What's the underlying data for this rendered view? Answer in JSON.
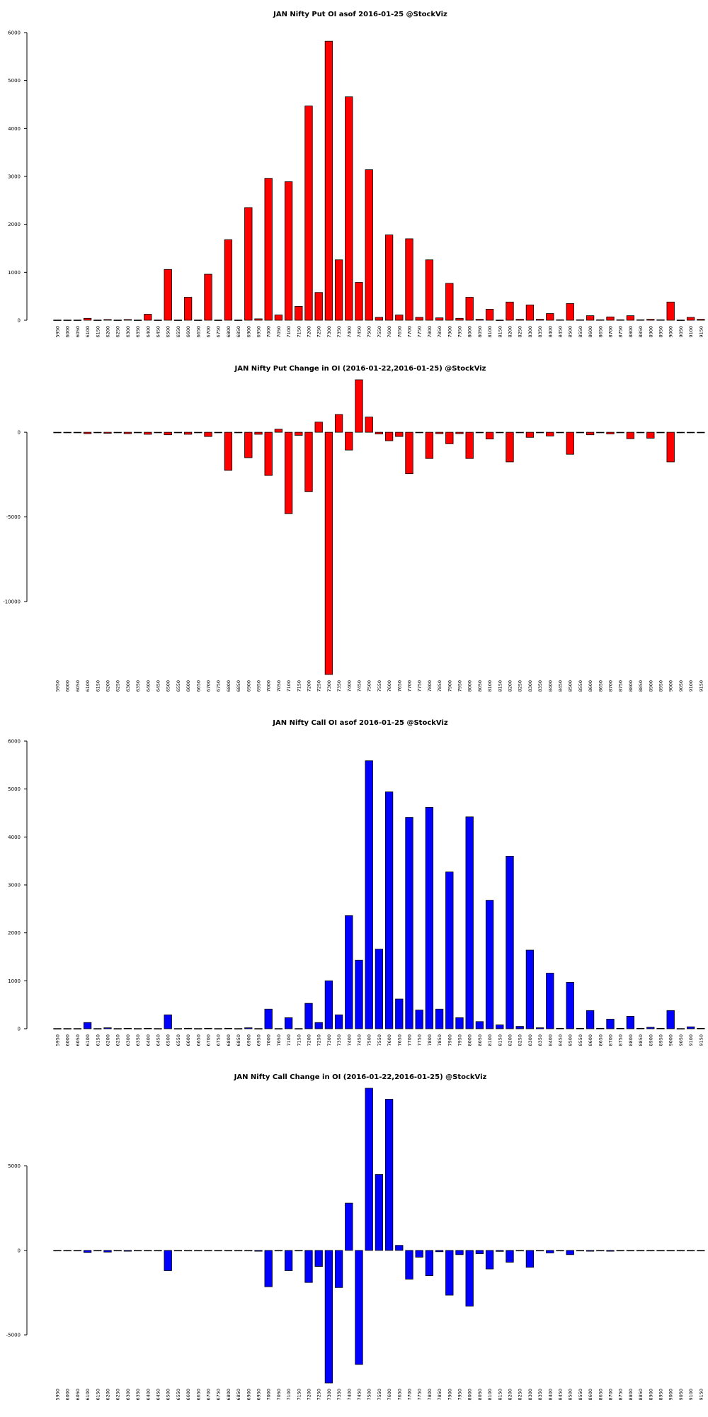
{
  "chart_data": [
    {
      "type": "bar",
      "title": "JAN Nifty Put OI asof 2016-01-25 @StockViz",
      "color": "#ff0000",
      "categories": [
        "5950",
        "6000",
        "6050",
        "6100",
        "6150",
        "6200",
        "6250",
        "6300",
        "6350",
        "6400",
        "6450",
        "6500",
        "6550",
        "6600",
        "6650",
        "6700",
        "6750",
        "6800",
        "6850",
        "6900",
        "6950",
        "7000",
        "7050",
        "7100",
        "7150",
        "7200",
        "7250",
        "7300",
        "7350",
        "7400",
        "7450",
        "7500",
        "7550",
        "7600",
        "7650",
        "7700",
        "7750",
        "7800",
        "7850",
        "7900",
        "7950",
        "8000",
        "8050",
        "8100",
        "8150",
        "8200",
        "8250",
        "8300",
        "8350",
        "8400",
        "8450",
        "8500",
        "8550",
        "8600",
        "8650",
        "8700",
        "8750",
        "8800",
        "8850",
        "8900",
        "8950",
        "9000",
        "9050",
        "9100",
        "9150"
      ],
      "values": [
        5,
        5,
        5,
        40,
        5,
        15,
        5,
        15,
        5,
        125,
        5,
        1060,
        5,
        480,
        5,
        960,
        5,
        1680,
        5,
        2350,
        30,
        2960,
        110,
        2890,
        290,
        4470,
        580,
        5820,
        1260,
        4660,
        790,
        3140,
        60,
        1780,
        110,
        1700,
        60,
        1260,
        50,
        770,
        40,
        480,
        20,
        230,
        5,
        380,
        20,
        320,
        20,
        140,
        10,
        350,
        10,
        95,
        10,
        70,
        10,
        95,
        10,
        20,
        10,
        380,
        5,
        60,
        20
      ],
      "ylim": [
        0,
        6000
      ],
      "yticks": [
        0,
        1000,
        2000,
        3000,
        4000,
        5000,
        6000
      ],
      "xlabel": "",
      "ylabel": ""
    },
    {
      "type": "bar",
      "title": "JAN Nifty Put Change in OI (2016-01-22,2016-01-25) @StockViz",
      "color": "#ff0000",
      "categories": [
        "5950",
        "6000",
        "6050",
        "6100",
        "6150",
        "6200",
        "6250",
        "6300",
        "6350",
        "6400",
        "6450",
        "6500",
        "6550",
        "6600",
        "6650",
        "6700",
        "6750",
        "6800",
        "6850",
        "6900",
        "6950",
        "7000",
        "7050",
        "7100",
        "7150",
        "7200",
        "7250",
        "7300",
        "7350",
        "7400",
        "7450",
        "7500",
        "7550",
        "7600",
        "7650",
        "7700",
        "7750",
        "7800",
        "7850",
        "7900",
        "7950",
        "8000",
        "8050",
        "8100",
        "8150",
        "8200",
        "8250",
        "8300",
        "8350",
        "8400",
        "8450",
        "8500",
        "8550",
        "8600",
        "8650",
        "8700",
        "8750",
        "8800",
        "8850",
        "8900",
        "8950",
        "9000",
        "9050",
        "9100",
        "9150"
      ],
      "values": [
        0,
        0,
        0,
        -80,
        0,
        -60,
        0,
        -80,
        0,
        -120,
        0,
        -150,
        0,
        -120,
        0,
        -250,
        0,
        -2250,
        0,
        -1500,
        -120,
        -2550,
        180,
        -4800,
        -180,
        -3500,
        600,
        -14300,
        1050,
        -1050,
        3100,
        900,
        -100,
        -500,
        -250,
        -2450,
        0,
        -1550,
        -80,
        -680,
        -80,
        -1550,
        0,
        -400,
        0,
        -1750,
        0,
        -300,
        0,
        -220,
        0,
        -1300,
        0,
        -150,
        0,
        -100,
        0,
        -380,
        0,
        -350,
        0,
        -1750,
        0,
        -30,
        0
      ],
      "ylim": [
        -14300,
        3100
      ],
      "yticks": [
        -10000,
        -5000,
        0
      ],
      "xlabel": "",
      "ylabel": ""
    },
    {
      "type": "bar",
      "title": "JAN Nifty Call OI asof 2016-01-25 @StockViz",
      "color": "#0000ff",
      "categories": [
        "5950",
        "6000",
        "6050",
        "6100",
        "6150",
        "6200",
        "6250",
        "6300",
        "6350",
        "6400",
        "6450",
        "6500",
        "6550",
        "6600",
        "6650",
        "6700",
        "6750",
        "6800",
        "6850",
        "6900",
        "6950",
        "7000",
        "7050",
        "7100",
        "7150",
        "7200",
        "7250",
        "7300",
        "7350",
        "7400",
        "7450",
        "7500",
        "7550",
        "7600",
        "7650",
        "7700",
        "7750",
        "7800",
        "7850",
        "7900",
        "7950",
        "8000",
        "8050",
        "8100",
        "8150",
        "8200",
        "8250",
        "8300",
        "8350",
        "8400",
        "8450",
        "8500",
        "8550",
        "8600",
        "8650",
        "8700",
        "8750",
        "8800",
        "8850",
        "8900",
        "8950",
        "9000",
        "9050",
        "9100",
        "9150"
      ],
      "values": [
        5,
        5,
        5,
        130,
        5,
        20,
        5,
        10,
        5,
        10,
        5,
        290,
        5,
        10,
        5,
        10,
        5,
        10,
        5,
        20,
        5,
        410,
        5,
        230,
        5,
        530,
        130,
        1000,
        290,
        2360,
        1430,
        5590,
        1660,
        4940,
        620,
        4410,
        390,
        4620,
        410,
        3270,
        230,
        4420,
        150,
        2680,
        80,
        3600,
        50,
        1640,
        20,
        1160,
        10,
        970,
        10,
        380,
        10,
        200,
        10,
        260,
        10,
        30,
        10,
        380,
        5,
        40,
        10
      ],
      "ylim": [
        0,
        6000
      ],
      "yticks": [
        0,
        1000,
        2000,
        3000,
        4000,
        5000,
        6000
      ],
      "xlabel": "",
      "ylabel": ""
    },
    {
      "type": "bar",
      "title": "JAN Nifty Call Change in OI (2016-01-22,2016-01-25) @StockViz",
      "color": "#0000ff",
      "categories": [
        "5950",
        "6000",
        "6050",
        "6100",
        "6150",
        "6200",
        "6250",
        "6300",
        "6350",
        "6400",
        "6450",
        "6500",
        "6550",
        "6600",
        "6650",
        "6700",
        "6750",
        "6800",
        "6850",
        "6900",
        "6950",
        "7000",
        "7050",
        "7100",
        "7150",
        "7200",
        "7250",
        "7300",
        "7350",
        "7400",
        "7450",
        "7500",
        "7550",
        "7600",
        "7650",
        "7700",
        "7750",
        "7800",
        "7850",
        "7900",
        "7950",
        "8000",
        "8050",
        "8100",
        "8150",
        "8200",
        "8250",
        "8300",
        "8350",
        "8400",
        "8450",
        "8500",
        "8550",
        "8600",
        "8650",
        "8700",
        "8750",
        "8800",
        "8850",
        "8900",
        "8950",
        "9000",
        "9050",
        "9100",
        "9150"
      ],
      "values": [
        0,
        0,
        0,
        -120,
        0,
        -100,
        0,
        -50,
        0,
        -30,
        0,
        -1200,
        0,
        -30,
        0,
        -30,
        0,
        -30,
        0,
        -30,
        -50,
        -2150,
        0,
        -1200,
        0,
        -1900,
        -950,
        -7850,
        -2200,
        2800,
        -6750,
        9600,
        4500,
        8950,
        300,
        -1700,
        -400,
        -1500,
        -80,
        -2650,
        -250,
        -3300,
        -200,
        -1100,
        -60,
        -700,
        0,
        -1000,
        0,
        -150,
        0,
        -250,
        0,
        -50,
        0,
        -50,
        0,
        -30,
        0,
        -30,
        0,
        -30,
        0,
        -20,
        0
      ],
      "ylim": [
        -7850,
        9600
      ],
      "yticks": [
        -5000,
        0,
        5000
      ],
      "xlabel": "",
      "ylabel": ""
    }
  ]
}
